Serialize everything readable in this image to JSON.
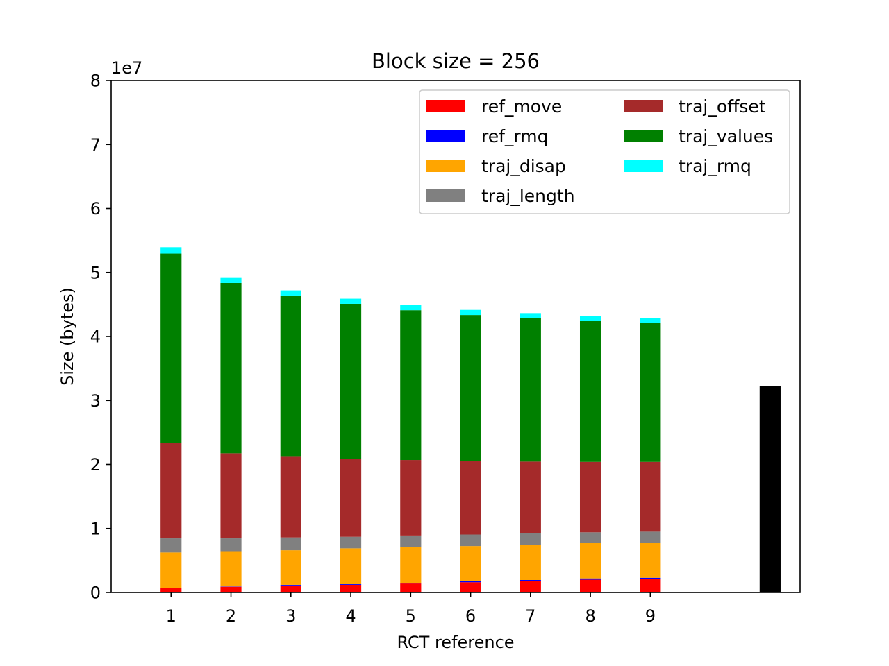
{
  "chart_data": {
    "type": "bar",
    "stacked": true,
    "title": "Block size = 256",
    "xlabel": "RCT reference",
    "ylabel": "Size (bytes)",
    "y_offset_label": "1e7",
    "ylim": [
      0,
      8
    ],
    "yticks": [
      0,
      1,
      2,
      3,
      4,
      5,
      6,
      7,
      8
    ],
    "xlim": [
      0.0,
      11.5
    ],
    "categories": [
      1,
      2,
      3,
      4,
      5,
      6,
      7,
      8,
      9
    ],
    "series": [
      {
        "name": "ref_move",
        "color": "#ff0000",
        "values": [
          0.07,
          0.09,
          0.11,
          0.12,
          0.14,
          0.16,
          0.18,
          0.2,
          0.21
        ]
      },
      {
        "name": "ref_rmq",
        "color": "#0000ff",
        "values": [
          0.005,
          0.005,
          0.01,
          0.01,
          0.01,
          0.015,
          0.015,
          0.02,
          0.02
        ]
      },
      {
        "name": "traj_disap",
        "color": "#ffa500",
        "values": [
          0.55,
          0.55,
          0.54,
          0.56,
          0.56,
          0.55,
          0.55,
          0.55,
          0.55
        ]
      },
      {
        "name": "traj_length",
        "color": "#808080",
        "values": [
          0.22,
          0.2,
          0.2,
          0.18,
          0.18,
          0.18,
          0.18,
          0.17,
          0.17
        ]
      },
      {
        "name": "traj_offset",
        "color": "#a52a2a",
        "values": [
          1.49,
          1.33,
          1.26,
          1.22,
          1.18,
          1.15,
          1.12,
          1.1,
          1.09
        ]
      },
      {
        "name": "traj_values",
        "color": "#008000",
        "values": [
          2.96,
          2.66,
          2.52,
          2.42,
          2.34,
          2.28,
          2.24,
          2.2,
          2.17
        ]
      },
      {
        "name": "traj_rmq",
        "color": "#00ffff",
        "values": [
          0.1,
          0.09,
          0.08,
          0.08,
          0.08,
          0.08,
          0.08,
          0.08,
          0.08
        ]
      }
    ],
    "extra_bar": {
      "x": 11.0,
      "value": 3.22,
      "color": "#000000"
    },
    "legend": {
      "placement": "upper right",
      "columns": 2
    },
    "grid": false
  }
}
